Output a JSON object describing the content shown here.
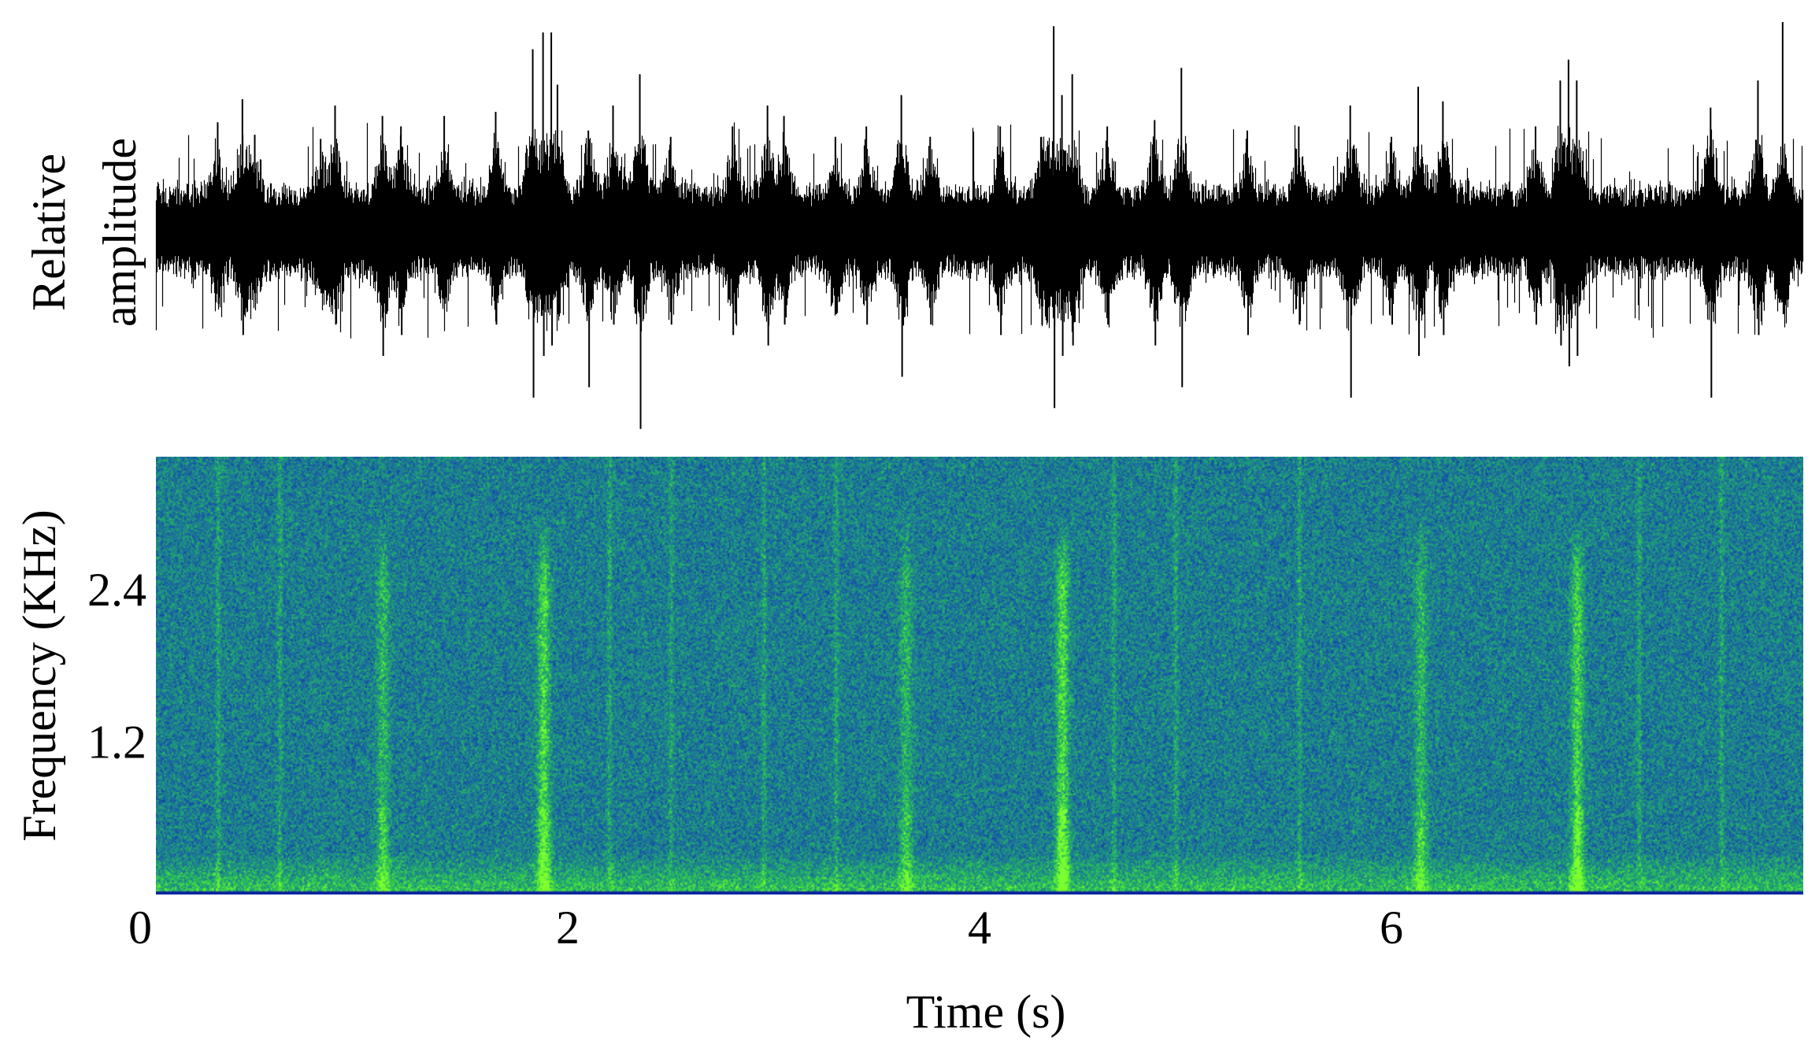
{
  "chart_data": [
    {
      "type": "line",
      "panel": "waveform",
      "ylabel_lines": [
        "Relative",
        "amplitude"
      ],
      "xlim": [
        0,
        8
      ],
      "ylim": [
        -1,
        1
      ],
      "baseline_noise": 0.2,
      "x": [
        0.3,
        0.42,
        0.48,
        0.8,
        0.87,
        1.1,
        1.19,
        1.4,
        1.65,
        1.83,
        1.88,
        1.92,
        1.95,
        2.1,
        2.22,
        2.35,
        2.5,
        2.8,
        2.97,
        3.05,
        3.3,
        3.45,
        3.62,
        3.76,
        4.1,
        4.3,
        4.36,
        4.4,
        4.45,
        4.62,
        4.85,
        4.98,
        5.3,
        5.55,
        5.8,
        6.0,
        6.13,
        6.25,
        6.7,
        6.82,
        6.86,
        6.9,
        7.55,
        7.78,
        7.9
      ],
      "peaks_pos": [
        0.52,
        0.63,
        0.46,
        0.44,
        0.6,
        0.55,
        0.5,
        0.55,
        0.57,
        0.87,
        0.95,
        0.95,
        0.7,
        0.48,
        0.6,
        0.75,
        0.45,
        0.5,
        0.6,
        0.55,
        0.45,
        0.5,
        0.65,
        0.45,
        0.5,
        0.45,
        0.98,
        0.65,
        0.75,
        0.5,
        0.53,
        0.78,
        0.48,
        0.5,
        0.6,
        0.45,
        0.69,
        0.62,
        0.5,
        0.72,
        0.82,
        0.72,
        0.59,
        0.72,
        1.0
      ],
      "peaks_neg": [
        0.35,
        0.5,
        0.3,
        0.3,
        0.45,
        0.6,
        0.5,
        0.35,
        0.45,
        0.8,
        0.6,
        0.55,
        0.4,
        0.75,
        0.45,
        0.95,
        0.45,
        0.5,
        0.55,
        0.45,
        0.4,
        0.45,
        0.7,
        0.45,
        0.5,
        0.45,
        0.85,
        0.6,
        0.55,
        0.45,
        0.55,
        0.75,
        0.5,
        0.45,
        0.8,
        0.45,
        0.6,
        0.5,
        0.45,
        0.55,
        0.65,
        0.6,
        0.8,
        0.5,
        0.4
      ]
    },
    {
      "type": "heatmap",
      "panel": "spectrogram",
      "ylabel": "Frequency (KHz)",
      "xlabel": "Time (s)",
      "xticks": [
        "0",
        "2",
        "4",
        "6"
      ],
      "yticks": [
        "1.2",
        "2.4"
      ],
      "xlim": [
        0,
        8
      ],
      "ylim": [
        0,
        3.45
      ],
      "colormap": [
        "#081b9c",
        "#0e3fa8",
        "#1e6ba0",
        "#1d9c78",
        "#35d04a",
        "#7dff2e"
      ],
      "events_s": [
        1.1,
        1.88,
        3.64,
        4.4,
        6.14,
        6.9
      ],
      "event_strength": [
        0.55,
        0.85,
        0.5,
        0.9,
        0.55,
        0.8
      ],
      "faint_events_s": [
        0.3,
        0.6,
        2.2,
        2.5,
        2.95,
        3.3,
        4.65,
        4.95,
        5.55,
        7.2,
        7.6
      ]
    }
  ]
}
